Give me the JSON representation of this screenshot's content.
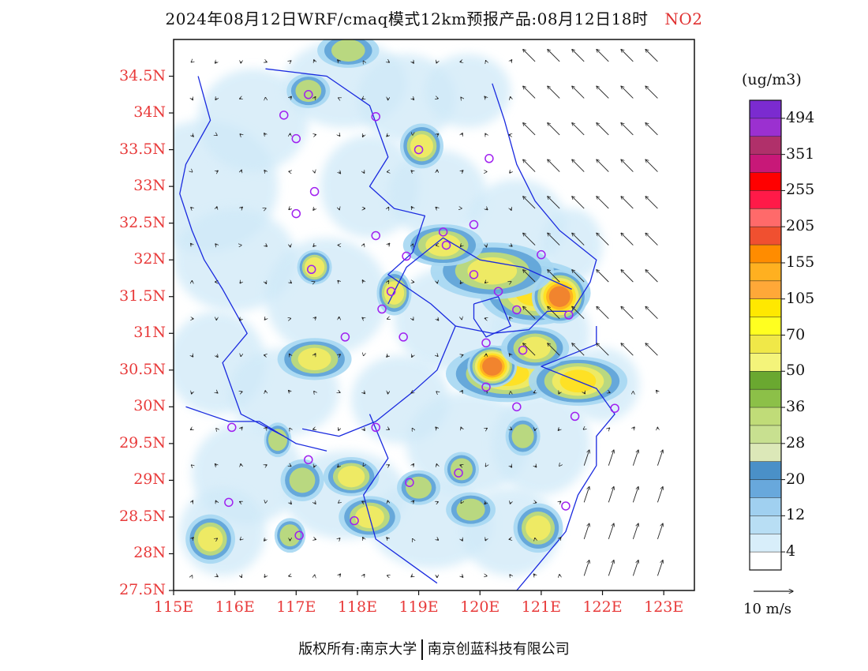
{
  "title": {
    "main": "2024年08月12日WRF/cmaq模式12km预报产品:08月12日18时",
    "pollutant": "NO2"
  },
  "axes": {
    "lat_labels": [
      "34.5N",
      "34N",
      "33.5N",
      "33N",
      "32.5N",
      "32N",
      "31.5N",
      "31N",
      "30.5N",
      "30N",
      "29.5N",
      "29N",
      "28.5N",
      "28N",
      "27.5N"
    ],
    "lon_labels": [
      "115E",
      "116E",
      "117E",
      "118E",
      "119E",
      "120E",
      "121E",
      "122E",
      "123E"
    ]
  },
  "colorbar": {
    "unit": "(ug/m3)",
    "levels": [
      "494",
      "351",
      "255",
      "205",
      "155",
      "105",
      "70",
      "50",
      "36",
      "28",
      "20",
      "12",
      "4"
    ],
    "colors": [
      "#7b2bd0",
      "#9b30d0",
      "#b0306a",
      "#c81878",
      "#ff0000",
      "#ff1a48",
      "#ff6a6a",
      "#f05030",
      "#ff8c00",
      "#ffb020",
      "#ffa838",
      "#ffe800",
      "#ffff20",
      "#f0e848",
      "#f4f47a",
      "#6aa830",
      "#8cc048",
      "#c0dc78",
      "#c8e090",
      "#dce8b8",
      "#4a90c8",
      "#68a8dc",
      "#a0d0f0",
      "#b8def4",
      "#d8eefa",
      "#ffffff"
    ]
  },
  "wind_reference": {
    "label": "10 m/s"
  },
  "map_colors": {
    "boundary": "#1a2adf",
    "station": "#a020f0",
    "axis_label": "#e83a3a"
  },
  "stations": [
    {
      "lon": 117.2,
      "lat": 34.25
    },
    {
      "lon": 116.8,
      "lat": 33.97
    },
    {
      "lon": 118.3,
      "lat": 33.95
    },
    {
      "lon": 117.0,
      "lat": 33.65
    },
    {
      "lon": 119.0,
      "lat": 33.5
    },
    {
      "lon": 120.15,
      "lat": 33.38
    },
    {
      "lon": 117.3,
      "lat": 32.93
    },
    {
      "lon": 117.0,
      "lat": 32.63
    },
    {
      "lon": 118.3,
      "lat": 32.33
    },
    {
      "lon": 119.4,
      "lat": 32.38
    },
    {
      "lon": 119.45,
      "lat": 32.2
    },
    {
      "lon": 119.9,
      "lat": 32.48
    },
    {
      "lon": 121.0,
      "lat": 32.07
    },
    {
      "lon": 117.25,
      "lat": 31.87
    },
    {
      "lon": 118.8,
      "lat": 32.05
    },
    {
      "lon": 119.9,
      "lat": 31.8
    },
    {
      "lon": 120.3,
      "lat": 31.57
    },
    {
      "lon": 118.4,
      "lat": 31.33
    },
    {
      "lon": 118.55,
      "lat": 31.57
    },
    {
      "lon": 120.6,
      "lat": 31.32
    },
    {
      "lon": 121.45,
      "lat": 31.25
    },
    {
      "lon": 117.8,
      "lat": 30.95
    },
    {
      "lon": 118.75,
      "lat": 30.95
    },
    {
      "lon": 120.1,
      "lat": 30.87
    },
    {
      "lon": 120.7,
      "lat": 30.77
    },
    {
      "lon": 120.1,
      "lat": 30.27
    },
    {
      "lon": 120.6,
      "lat": 30.0
    },
    {
      "lon": 121.55,
      "lat": 29.87
    },
    {
      "lon": 122.2,
      "lat": 29.98
    },
    {
      "lon": 115.95,
      "lat": 29.72
    },
    {
      "lon": 118.3,
      "lat": 29.72
    },
    {
      "lon": 117.2,
      "lat": 29.28
    },
    {
      "lon": 118.85,
      "lat": 28.97
    },
    {
      "lon": 119.65,
      "lat": 29.1
    },
    {
      "lon": 115.9,
      "lat": 28.7
    },
    {
      "lon": 117.95,
      "lat": 28.45
    },
    {
      "lon": 117.05,
      "lat": 28.25
    },
    {
      "lon": 121.4,
      "lat": 28.65
    }
  ],
  "pollution_areas": [
    {
      "lon": 120.9,
      "lat": 31.55,
      "rx": 0.8,
      "ry": 0.35,
      "level": 3
    },
    {
      "lon": 121.3,
      "lat": 31.5,
      "rx": 0.35,
      "ry": 0.28,
      "level": 5
    },
    {
      "lon": 120.2,
      "lat": 31.85,
      "rx": 0.9,
      "ry": 0.3,
      "level": 2
    },
    {
      "lon": 119.4,
      "lat": 32.2,
      "rx": 0.55,
      "ry": 0.2,
      "level": 2
    },
    {
      "lon": 120.45,
      "lat": 30.45,
      "rx": 0.9,
      "ry": 0.3,
      "level": 3
    },
    {
      "lon": 120.2,
      "lat": 30.55,
      "rx": 0.3,
      "ry": 0.2,
      "level": 5
    },
    {
      "lon": 121.6,
      "lat": 30.35,
      "rx": 0.7,
      "ry": 0.25,
      "level": 3
    },
    {
      "lon": 120.9,
      "lat": 30.8,
      "rx": 0.45,
      "ry": 0.2,
      "level": 2
    },
    {
      "lon": 119.05,
      "lat": 33.55,
      "rx": 0.25,
      "ry": 0.22,
      "level": 2
    },
    {
      "lon": 117.3,
      "lat": 30.65,
      "rx": 0.5,
      "ry": 0.2,
      "level": 2
    },
    {
      "lon": 117.9,
      "lat": 29.05,
      "rx": 0.35,
      "ry": 0.18,
      "level": 2
    },
    {
      "lon": 117.1,
      "lat": 29.0,
      "rx": 0.25,
      "ry": 0.2,
      "level": 1
    },
    {
      "lon": 118.2,
      "lat": 28.5,
      "rx": 0.4,
      "ry": 0.2,
      "level": 2
    },
    {
      "lon": 115.6,
      "lat": 28.2,
      "rx": 0.3,
      "ry": 0.25,
      "level": 2
    },
    {
      "lon": 118.6,
      "lat": 31.55,
      "rx": 0.18,
      "ry": 0.22,
      "level": 2
    },
    {
      "lon": 117.3,
      "lat": 31.9,
      "rx": 0.18,
      "ry": 0.15,
      "level": 2
    },
    {
      "lon": 120.95,
      "lat": 28.35,
      "rx": 0.3,
      "ry": 0.25,
      "level": 2
    },
    {
      "lon": 119.7,
      "lat": 29.15,
      "rx": 0.18,
      "ry": 0.15,
      "level": 1
    },
    {
      "lon": 119.0,
      "lat": 28.9,
      "rx": 0.25,
      "ry": 0.15,
      "level": 1
    },
    {
      "lon": 117.2,
      "lat": 34.3,
      "rx": 0.25,
      "ry": 0.15,
      "level": 1
    },
    {
      "lon": 117.85,
      "lat": 34.85,
      "rx": 0.4,
      "ry": 0.15,
      "level": 1
    },
    {
      "lon": 116.9,
      "lat": 28.25,
      "rx": 0.15,
      "ry": 0.15,
      "level": 1
    },
    {
      "lon": 116.7,
      "lat": 29.55,
      "rx": 0.12,
      "ry": 0.15,
      "level": 1
    },
    {
      "lon": 120.7,
      "lat": 29.6,
      "rx": 0.18,
      "ry": 0.18,
      "level": 1
    },
    {
      "lon": 119.85,
      "lat": 28.6,
      "rx": 0.3,
      "ry": 0.15,
      "level": 1
    }
  ]
}
